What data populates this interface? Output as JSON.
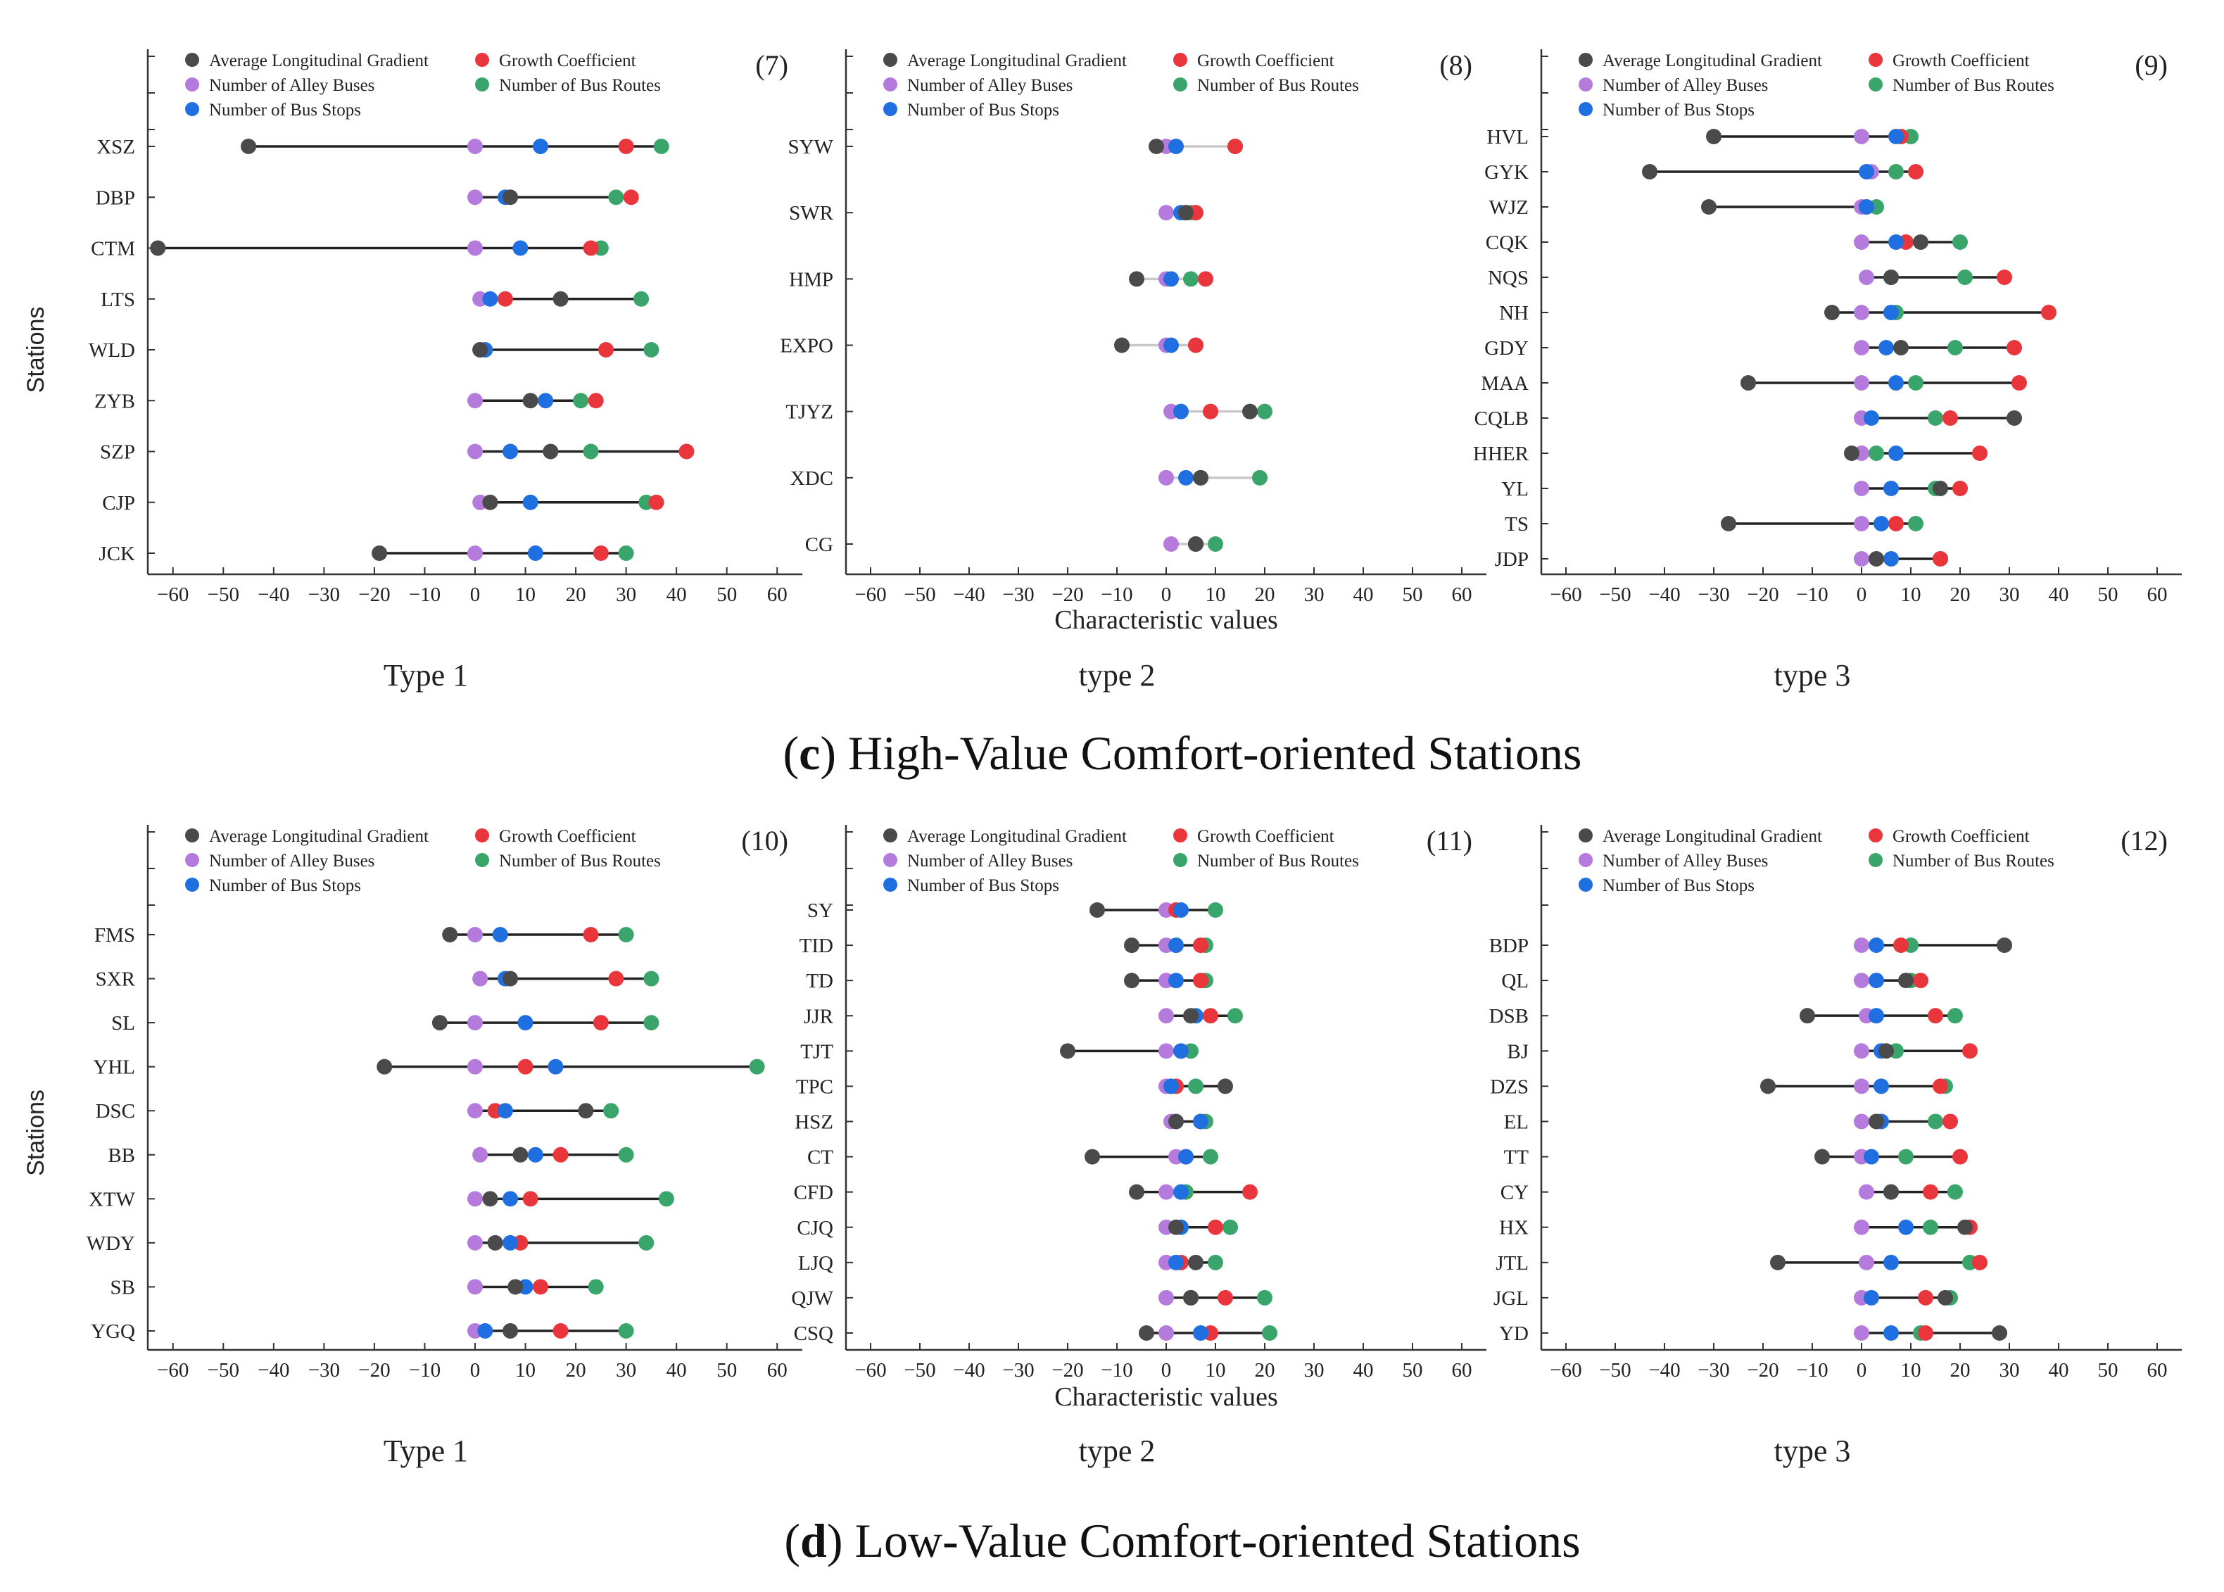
{
  "colors": {
    "Average Longitudinal Gradient": "#4a4a4a",
    "Growth Coefficient": "#e8363c",
    "Number of Alley Buses": "#b57bdc",
    "Number of Bus Routes": "#3aa56a",
    "Number of Bus Stops": "#1f6fe0"
  },
  "legend_labels": [
    "Average Longitudinal Gradient",
    "Growth Coefficient",
    "Number of Alley Buses",
    "Number of Bus Routes",
    "Number of Bus Stops"
  ],
  "series_keys": [
    "Average Longitudinal Gradient",
    "Growth Coefficient",
    "Number of Alley Buses",
    "Number of Bus Routes",
    "Number of Bus Stops"
  ],
  "sections": [
    {
      "caption_letter": "c",
      "caption_text": " High-Value Comfort-oriented Stations"
    },
    {
      "caption_letter": "d",
      "caption_text": " Low-Value Comfort-oriented Stations"
    }
  ],
  "chart_data": [
    {
      "type": "scatter",
      "panel": "(7)",
      "subtitle": "Type 1",
      "ylabel": "Stations",
      "xlabel": "",
      "xlim": [
        -65,
        65
      ],
      "xticks": [
        -60,
        -50,
        -40,
        -30,
        -20,
        -10,
        0,
        10,
        20,
        30,
        40,
        50,
        60
      ],
      "legend": "top",
      "connector": "dark",
      "categories": [
        "XSZ",
        "DBP",
        "CTM",
        "LTS",
        "WLD",
        "ZYB",
        "SZP",
        "CJP",
        "JCK"
      ],
      "series": [
        {
          "name": "Average Longitudinal Gradient",
          "values": [
            -45,
            7,
            -63,
            17,
            1,
            11,
            15,
            3,
            -19
          ]
        },
        {
          "name": "Growth Coefficient",
          "values": [
            30,
            31,
            23,
            6,
            26,
            24,
            42,
            36,
            25
          ]
        },
        {
          "name": "Number of Alley Buses",
          "values": [
            0,
            0,
            0,
            1,
            1,
            0,
            0,
            1,
            0
          ]
        },
        {
          "name": "Number of Bus Routes",
          "values": [
            37,
            28,
            25,
            33,
            35,
            21,
            23,
            34,
            30
          ]
        },
        {
          "name": "Number of Bus Stops",
          "values": [
            13,
            6,
            9,
            3,
            2,
            14,
            7,
            11,
            12
          ]
        }
      ]
    },
    {
      "type": "scatter",
      "panel": "(8)",
      "subtitle": "type 2",
      "ylabel": "",
      "xlabel": "Characteristic values",
      "xlim": [
        -65,
        65
      ],
      "xticks": [
        -60,
        -50,
        -40,
        -30,
        -20,
        -10,
        0,
        10,
        20,
        30,
        40,
        50,
        60
      ],
      "legend": "top",
      "connector": "light",
      "categories": [
        "SYW",
        "SWR",
        "HMP",
        "EXPO",
        "TJYZ",
        "XDC",
        "CG"
      ],
      "series": [
        {
          "name": "Average Longitudinal Gradient",
          "values": [
            -2,
            4,
            -6,
            -9,
            17,
            7,
            6
          ]
        },
        {
          "name": "Growth Coefficient",
          "values": [
            14,
            6,
            8,
            6,
            9,
            7,
            6
          ]
        },
        {
          "name": "Number of Alley Buses",
          "values": [
            0,
            0,
            0,
            0,
            1,
            0,
            1
          ]
        },
        {
          "name": "Number of Bus Routes",
          "values": [
            14,
            5,
            5,
            6,
            20,
            19,
            10
          ]
        },
        {
          "name": "Number of Bus Stops",
          "values": [
            2,
            3,
            1,
            1,
            3,
            4,
            6
          ]
        }
      ]
    },
    {
      "type": "scatter",
      "panel": "(9)",
      "subtitle": "type 3",
      "ylabel": "",
      "xlabel": "",
      "xlim": [
        -65,
        65
      ],
      "xticks": [
        -60,
        -50,
        -40,
        -30,
        -20,
        -10,
        0,
        10,
        20,
        30,
        40,
        50,
        60
      ],
      "legend": "top",
      "connector": "dark",
      "categories": [
        "HVL",
        "GYK",
        "WJZ",
        "CQK",
        "NQS",
        "NH",
        "GDY",
        "MAA",
        "CQLB",
        "HHER",
        "YL",
        "TS",
        "JDP"
      ],
      "series": [
        {
          "name": "Average Longitudinal Gradient",
          "values": [
            -30,
            -43,
            -31,
            12,
            6,
            -6,
            8,
            -23,
            31,
            -2,
            16,
            -27,
            3
          ]
        },
        {
          "name": "Growth Coefficient",
          "values": [
            8,
            11,
            1,
            9,
            29,
            38,
            31,
            32,
            18,
            24,
            20,
            7,
            16
          ]
        },
        {
          "name": "Number of Alley Buses",
          "values": [
            0,
            2,
            0,
            0,
            1,
            0,
            0,
            0,
            0,
            0,
            0,
            0,
            0
          ]
        },
        {
          "name": "Number of Bus Routes",
          "values": [
            10,
            7,
            3,
            20,
            21,
            7,
            19,
            11,
            15,
            3,
            15,
            11,
            16
          ]
        },
        {
          "name": "Number of Bus Stops",
          "values": [
            7,
            1,
            1,
            7,
            6,
            6,
            5,
            7,
            2,
            7,
            6,
            4,
            6
          ]
        }
      ]
    },
    {
      "type": "scatter",
      "panel": "(10)",
      "subtitle": "Type 1",
      "ylabel": "Stations",
      "xlabel": "",
      "xlim": [
        -65,
        65
      ],
      "xticks": [
        -60,
        -50,
        -40,
        -30,
        -20,
        -10,
        0,
        10,
        20,
        30,
        40,
        50,
        60
      ],
      "legend": "top",
      "connector": "dark",
      "categories": [
        "FMS",
        "SXR",
        "SL",
        "YHL",
        "DSC",
        "BB",
        "XTW",
        "WDY",
        "SB",
        "YGQ"
      ],
      "series": [
        {
          "name": "Average Longitudinal Gradient",
          "values": [
            -5,
            7,
            -7,
            -18,
            22,
            9,
            3,
            4,
            8,
            7
          ]
        },
        {
          "name": "Growth Coefficient",
          "values": [
            23,
            28,
            25,
            10,
            4,
            17,
            11,
            9,
            13,
            17
          ]
        },
        {
          "name": "Number of Alley Buses",
          "values": [
            0,
            1,
            0,
            0,
            0,
            1,
            0,
            0,
            0,
            0
          ]
        },
        {
          "name": "Number of Bus Routes",
          "values": [
            30,
            35,
            35,
            56,
            27,
            30,
            38,
            34,
            24,
            30
          ]
        },
        {
          "name": "Number of Bus Stops",
          "values": [
            5,
            6,
            10,
            16,
            6,
            12,
            7,
            7,
            10,
            2
          ]
        }
      ]
    },
    {
      "type": "scatter",
      "panel": "(11)",
      "subtitle": "type 2",
      "ylabel": "",
      "xlabel": "Characteristic values",
      "xlim": [
        -65,
        65
      ],
      "xticks": [
        -60,
        -50,
        -40,
        -30,
        -20,
        -10,
        0,
        10,
        20,
        30,
        40,
        50,
        60
      ],
      "legend": "top",
      "connector": "dark",
      "categories": [
        "SY",
        "TID",
        "TD",
        "JJR",
        "TJT",
        "TPC",
        "HSZ",
        "CT",
        "CFD",
        "CJQ",
        "LJQ",
        "QJW",
        "CSQ"
      ],
      "series": [
        {
          "name": "Average Longitudinal Gradient",
          "values": [
            -14,
            -7,
            -7,
            5,
            -20,
            12,
            2,
            -15,
            -6,
            2,
            6,
            5,
            -4
          ]
        },
        {
          "name": "Growth Coefficient",
          "values": [
            2,
            7,
            7,
            9,
            3,
            2,
            7,
            4,
            17,
            10,
            3,
            12,
            9
          ]
        },
        {
          "name": "Number of Alley Buses",
          "values": [
            0,
            0,
            0,
            0,
            0,
            0,
            1,
            2,
            0,
            0,
            0,
            0,
            0
          ]
        },
        {
          "name": "Number of Bus Routes",
          "values": [
            10,
            8,
            8,
            14,
            5,
            6,
            8,
            9,
            4,
            13,
            10,
            20,
            21
          ]
        },
        {
          "name": "Number of Bus Stops",
          "values": [
            3,
            2,
            2,
            6,
            3,
            1,
            7,
            4,
            3,
            3,
            2,
            5,
            7
          ]
        }
      ]
    },
    {
      "type": "scatter",
      "panel": "(12)",
      "subtitle": "type 3",
      "ylabel": "",
      "xlabel": "",
      "xlim": [
        -65,
        65
      ],
      "xticks": [
        -60,
        -50,
        -40,
        -30,
        -20,
        -10,
        0,
        10,
        20,
        30,
        40,
        50,
        60
      ],
      "legend": "top",
      "connector": "dark",
      "categories": [
        "BDP",
        "QL",
        "DSB",
        "BJ",
        "DZS",
        "EL",
        "TT",
        "CY",
        "HX",
        "JTL",
        "JGL",
        "YD"
      ],
      "series": [
        {
          "name": "Average Longitudinal Gradient",
          "values": [
            29,
            9,
            -11,
            5,
            -19,
            3,
            -8,
            6,
            21,
            -17,
            17,
            28
          ]
        },
        {
          "name": "Growth Coefficient",
          "values": [
            8,
            12,
            15,
            22,
            16,
            18,
            20,
            14,
            22,
            24,
            13,
            13
          ]
        },
        {
          "name": "Number of Alley Buses",
          "values": [
            0,
            0,
            1,
            0,
            0,
            0,
            0,
            1,
            0,
            1,
            0,
            0
          ]
        },
        {
          "name": "Number of Bus Routes",
          "values": [
            10,
            10,
            19,
            7,
            17,
            15,
            9,
            19,
            14,
            22,
            18,
            12
          ]
        },
        {
          "name": "Number of Bus Stops",
          "values": [
            3,
            3,
            3,
            4,
            4,
            4,
            2,
            6,
            9,
            6,
            2,
            6
          ]
        }
      ]
    }
  ]
}
